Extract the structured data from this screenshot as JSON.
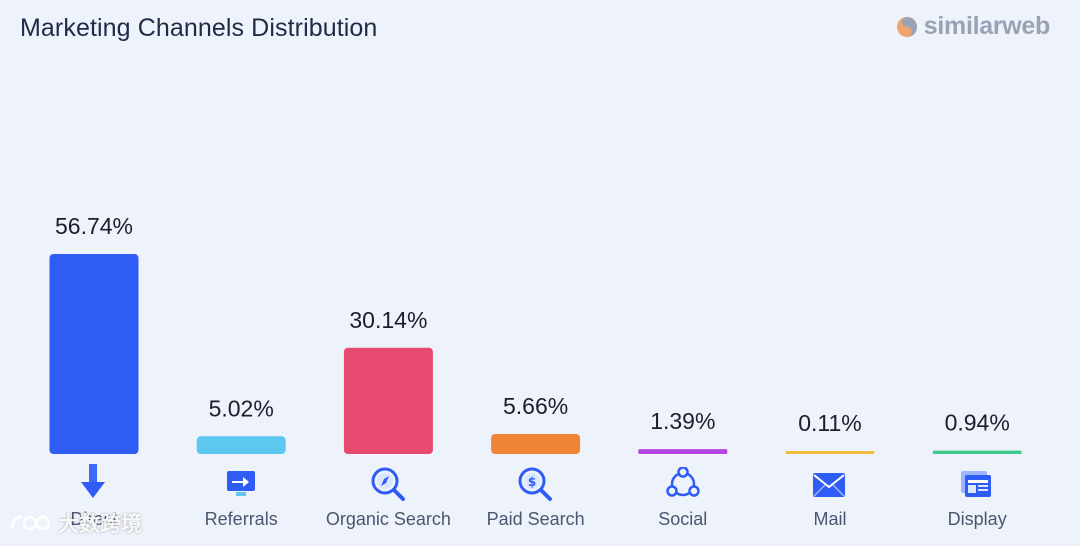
{
  "header": {
    "title": "Marketing Channels Distribution"
  },
  "brand": {
    "name": "similarweb"
  },
  "watermark": {
    "text": "大数跨境"
  },
  "colors": {
    "background": "#eef2fb",
    "direct": "#2f5cf5",
    "referrals": "#5cc8f0",
    "organic": "#e84a6f",
    "paid": "#ef8437",
    "social": "#b545e3",
    "mail": "#f2bb40",
    "display": "#3ec98a"
  },
  "chart_data": {
    "type": "bar",
    "title": "Marketing Channels Distribution",
    "unit": "%",
    "categories": [
      "Direct",
      "Referrals",
      "Organic Search",
      "Paid Search",
      "Social",
      "Mail",
      "Display"
    ],
    "values": [
      56.74,
      5.02,
      30.14,
      5.66,
      1.39,
      0.11,
      0.94
    ],
    "value_labels": [
      "56.74%",
      "5.02%",
      "30.14%",
      "5.66%",
      "1.39%",
      "0.11%",
      "0.94%"
    ],
    "bar_colors": [
      "#2f5cf5",
      "#5cc8f0",
      "#e84a6f",
      "#ef8437",
      "#b545e3",
      "#f2bb40",
      "#3ec98a"
    ],
    "icons": [
      "arrow-down-icon",
      "monitor-arrow-icon",
      "compass-search-icon",
      "dollar-search-icon",
      "share-network-icon",
      "envelope-icon",
      "browser-window-icon"
    ],
    "grid": false,
    "legend": "none"
  }
}
